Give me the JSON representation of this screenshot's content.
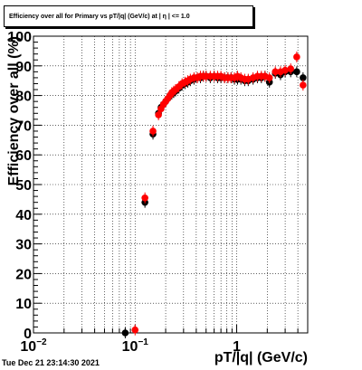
{
  "title": "Efficiency over all for Primary vs pT/|q| (GeV/c) at | η | <= 1.0",
  "timestamp": "Tue Dec 21 23:14:30 2021",
  "colors": {
    "series_black": "#000000",
    "series_red": "#ff0000",
    "grid": "#000000"
  },
  "chart_data": {
    "type": "scatter",
    "title": "Efficiency over all for Primary vs pT/|q| (GeV/c) at | η | <= 1.0",
    "xlabel": "pT/|q| (GeV/c)",
    "ylabel": "Efficiency over all (%)",
    "xscale": "log",
    "xlim": [
      0.01,
      5
    ],
    "ylim": [
      0,
      100
    ],
    "grid": true,
    "xticks": [
      {
        "value": 0.01,
        "base": "10",
        "exp": "−2"
      },
      {
        "value": 0.1,
        "base": "10",
        "exp": "−1"
      },
      {
        "value": 1,
        "base": "1",
        "exp": ""
      }
    ],
    "yticks": [
      "0",
      "10",
      "20",
      "30",
      "40",
      "50",
      "60",
      "70",
      "80",
      "90",
      "100"
    ],
    "series": [
      {
        "color": "black",
        "x": [
          0.08,
          0.125,
          0.15,
          0.17,
          0.18,
          0.19,
          0.2,
          0.21,
          0.22,
          0.23,
          0.24,
          0.25,
          0.27,
          0.29,
          0.31,
          0.33,
          0.35,
          0.38,
          0.41,
          0.44,
          0.47,
          0.5,
          0.55,
          0.6,
          0.65,
          0.7,
          0.76,
          0.82,
          0.88,
          0.95,
          1.02,
          1.1,
          1.2,
          1.3,
          1.45,
          1.6,
          1.75,
          1.9,
          2.1,
          2.4,
          2.7,
          3.0,
          3.4,
          3.9,
          4.5
        ],
        "y": [
          0,
          44,
          67,
          74,
          76,
          77,
          78,
          79,
          80,
          80.5,
          81,
          81.5,
          82.5,
          83.5,
          84,
          84.5,
          85,
          85.5,
          86,
          86,
          86.5,
          86.5,
          86,
          86.5,
          86,
          86,
          86,
          86,
          86,
          85.5,
          85.5,
          85.5,
          85,
          85,
          85.5,
          86,
          86,
          86.5,
          84.5,
          87.5,
          87,
          88,
          88,
          88,
          86
        ]
      },
      {
        "color": "red",
        "x": [
          0.1,
          0.125,
          0.15,
          0.17,
          0.18,
          0.19,
          0.2,
          0.21,
          0.22,
          0.23,
          0.24,
          0.25,
          0.27,
          0.29,
          0.31,
          0.33,
          0.35,
          0.38,
          0.41,
          0.44,
          0.47,
          0.5,
          0.55,
          0.6,
          0.65,
          0.7,
          0.76,
          0.82,
          0.88,
          0.95,
          1.02,
          1.1,
          1.2,
          1.3,
          1.45,
          1.6,
          1.75,
          1.9,
          2.1,
          2.4,
          2.7,
          3.0,
          3.4,
          3.9,
          4.5
        ],
        "y": [
          1,
          45.5,
          68,
          73.5,
          75.5,
          77,
          78,
          79,
          80,
          81,
          81.5,
          82,
          83,
          84,
          84.5,
          85,
          85.5,
          86,
          86,
          86.5,
          86.5,
          86.5,
          86.5,
          86.5,
          86.5,
          86.5,
          86,
          86,
          86,
          86,
          86.5,
          86,
          85.5,
          85.5,
          86,
          86.5,
          86.5,
          86.5,
          86,
          88,
          88,
          88.5,
          89,
          93,
          83.5
        ]
      }
    ]
  }
}
